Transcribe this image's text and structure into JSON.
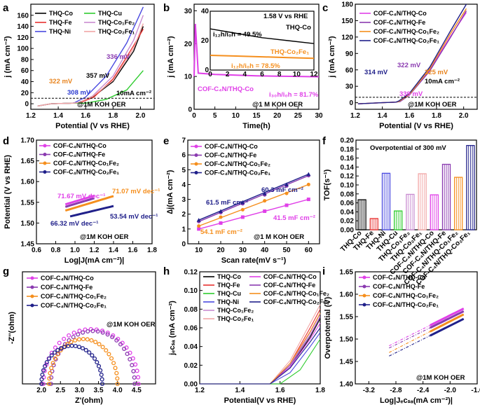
{
  "colors": {
    "THQ-Co": "#000000",
    "THQ-Fe": "#e8312f",
    "THQ-Ni": "#4a4ae0",
    "THQ-Cu": "#2ecc2e",
    "THQ-Co1Fe2": "#c98cd1",
    "THQ-Co2Fe1": "#f2a6a6",
    "COF-Co": "#e040e8",
    "COF-Fe": "#8a3ab0",
    "COF-Co1Fe2": "#f58f1e",
    "COF-Co2Fe1": "#20208a"
  },
  "chart_data": [
    {
      "panel": "a",
      "type": "line",
      "xlabel": "Potential (V vs RHE)",
      "ylabel": "j (mA cm⁻²)",
      "xlim": [
        1.2,
        2.1
      ],
      "ylim": [
        -10,
        180
      ],
      "xticks": [
        "1.2",
        "1.4",
        "1.6",
        "1.8",
        "2.0"
      ],
      "yticks": [
        "0",
        "20",
        "40",
        "60",
        "80",
        "100",
        "120",
        "140",
        "160"
      ],
      "legend": [
        "THQ-Co",
        "THQ-Fe",
        "THQ-Ni",
        "THQ-Cu",
        "THQ-Co₁Fe₂",
        "THQ-Co₂Fe₁"
      ],
      "annotations": [
        "308 mV",
        "322 mV",
        "357 mV",
        "336 mV",
        "10mA cm⁻²",
        "@1M KOH OER"
      ],
      "series": [
        {
          "name": "THQ-Co",
          "x": [
            1.55,
            1.65,
            1.8,
            1.95,
            2.02
          ],
          "y": [
            2,
            12,
            40,
            95,
            140
          ]
        },
        {
          "name": "THQ-Fe",
          "x": [
            1.56,
            1.66,
            1.8,
            1.95,
            2.02
          ],
          "y": [
            2,
            12,
            45,
            105,
            135
          ]
        },
        {
          "name": "THQ-Ni",
          "x": [
            1.52,
            1.6,
            1.75,
            1.9,
            2.02
          ],
          "y": [
            2,
            12,
            50,
            110,
            175
          ]
        },
        {
          "name": "THQ-Cu",
          "x": [
            1.6,
            1.75,
            1.9,
            2.02
          ],
          "y": [
            1,
            8,
            25,
            60
          ]
        },
        {
          "name": "THQ-Co₁Fe₂",
          "x": [
            1.55,
            1.65,
            1.8,
            1.95,
            2.02
          ],
          "y": [
            2,
            14,
            50,
            115,
            160
          ]
        },
        {
          "name": "THQ-Co₂Fe₁",
          "x": [
            1.55,
            1.65,
            1.8,
            1.95,
            2.02
          ],
          "y": [
            2,
            13,
            42,
            100,
            145
          ]
        }
      ]
    },
    {
      "panel": "b",
      "type": "line",
      "xlabel": "Time(h)",
      "ylabel": "j (mA cm⁻²)",
      "xlim": [
        0,
        30
      ],
      "ylim": [
        0,
        32
      ],
      "xticks": [
        "0",
        "5",
        "10",
        "15",
        "20",
        "25",
        "30"
      ],
      "yticks": [
        "0",
        "10",
        "20",
        "30"
      ],
      "series": [
        {
          "name": "COF-C₄N/THQ-Co",
          "x": [
            0,
            0.3,
            1,
            5,
            10,
            15,
            20,
            25,
            30
          ],
          "y": [
            10,
            26,
            11,
            10.6,
            10.4,
            10.2,
            10.1,
            10,
            9.9
          ]
        }
      ],
      "annotations": [
        "COF-C₄N/THQ-Co",
        "i₃₀h/i₀h = 81.7%",
        "@1 M KOH OER"
      ],
      "inset": {
        "xlim": [
          0,
          12
        ],
        "ylim": [
          0,
          40
        ],
        "xticks": [
          "0",
          "2",
          "4",
          "6",
          "8",
          "10",
          "12"
        ],
        "yticks": [
          "0",
          "20",
          "40"
        ],
        "labels": [
          "1.58 V vs RHE",
          "THQ-Co",
          "i₁₂h/i₀h = 49.5%",
          "THQ-Co₂Fe₁",
          "i₁₂h/i₀h = 78.5%"
        ],
        "series": [
          {
            "name": "THQ-Co",
            "x": [
              0,
              3,
              6,
              9,
              12
            ],
            "y": [
              28,
              25,
              22,
              20,
              18
            ]
          },
          {
            "name": "THQ-Co₂Fe₁",
            "x": [
              0,
              3,
              6,
              9,
              12
            ],
            "y": [
              10,
              9.5,
              9,
              8.5,
              8
            ]
          }
        ]
      }
    },
    {
      "panel": "c",
      "type": "line",
      "xlabel": "Potential (V vs RHE)",
      "ylabel": "j (mA cm⁻²)",
      "xlim": [
        1.2,
        2.1
      ],
      "ylim": [
        -12,
        180
      ],
      "xticks": [
        "1.2",
        "1.4",
        "1.6",
        "1.8",
        "2.0"
      ],
      "yticks": [
        "0",
        "30",
        "60",
        "90",
        "120",
        "150",
        "180"
      ],
      "legend": [
        "COF-C₄N/THQ-Co",
        "COF-C₄N/THQ-Fe",
        "COF-C₄N/THQ-Co₁Fe₂",
        "COF-C₄N/THQ-Co₂Fe₁"
      ],
      "annotations": [
        "314 mV",
        "322 mV",
        "325 mV",
        "339 mV",
        "10mA cm⁻²",
        "@1M KOH OER"
      ],
      "series": [
        {
          "name": "COF-C₄N/THQ-Co",
          "x": [
            1.52,
            1.6,
            1.75,
            1.9,
            2.02
          ],
          "y": [
            2,
            15,
            60,
            120,
            165
          ]
        },
        {
          "name": "COF-C₄N/THQ-Fe",
          "x": [
            1.53,
            1.6,
            1.75,
            1.9,
            2.02
          ],
          "y": [
            2,
            14,
            58,
            118,
            168
          ]
        },
        {
          "name": "COF-C₄N/THQ-Co₁Fe₂",
          "x": [
            1.52,
            1.6,
            1.75,
            1.9,
            2.02
          ],
          "y": [
            2,
            15,
            62,
            125,
            172
          ]
        },
        {
          "name": "COF-C₄N/THQ-Co₂Fe₁",
          "x": [
            1.52,
            1.6,
            1.75,
            1.9,
            2.02
          ],
          "y": [
            3,
            17,
            65,
            130,
            180
          ]
        }
      ]
    },
    {
      "panel": "d",
      "type": "line",
      "xlabel": "Log|J(mA cm⁻²)|",
      "ylabel": "Potential (V vs RHE)",
      "xlim": [
        0.6,
        1.8
      ],
      "ylim": [
        1.45,
        1.7
      ],
      "xticks": [
        "0.6",
        "0.8",
        "1.0",
        "1.2",
        "1.4",
        "1.6",
        "1.8"
      ],
      "yticks": [
        "1.45",
        "1.50",
        "1.55",
        "1.60",
        "1.65",
        "1.70"
      ],
      "legend": [
        "COF-C₄N/THQ-Co",
        "COF-C₄N/THQ-Fe",
        "COF-C₄N/THQ-Co₁Fe₂",
        "COF-C₄N/THQ-Co₂Fe₁"
      ],
      "annotations": [
        "71.67 mV dec⁻¹",
        "71.07 mV dec⁻¹",
        "66.32 mV dec⁻¹",
        "53.54 mV dec⁻¹",
        "@1M KOH OER"
      ],
      "series": [
        {
          "name": "COF-C₄N/THQ-Co",
          "x": [
            0.9,
            1.2
          ],
          "y": [
            1.545,
            1.566
          ]
        },
        {
          "name": "COF-C₄N/THQ-Fe",
          "x": [
            0.9,
            1.2
          ],
          "y": [
            1.539,
            1.56
          ]
        },
        {
          "name": "COF-C₄N/THQ-Co₁Fe₂",
          "x": [
            0.9,
            1.4
          ],
          "y": [
            1.53,
            1.565
          ]
        },
        {
          "name": "COF-C₄N/THQ-Co₂Fe₁",
          "x": [
            0.95,
            1.4
          ],
          "y": [
            1.516,
            1.541
          ]
        }
      ]
    },
    {
      "panel": "e",
      "type": "scatter",
      "xlabel": "Scan rate(mV s⁻¹)",
      "ylabel": "∆j(mA cm⁻²)",
      "xlim": [
        5,
        65
      ],
      "ylim": [
        0,
        7
      ],
      "xticks": [
        "10",
        "20",
        "30",
        "40",
        "50",
        "60"
      ],
      "yticks": [
        "0",
        "1",
        "2",
        "3",
        "4",
        "5",
        "6",
        "7"
      ],
      "legend": [
        "COF-C₄N/THQ-Co",
        "COF-C₄N/THQ-Fe",
        "COF-C₄N/THQ-Co₁Fe₂",
        "COF-C₄N/THQ-Co₂Fe₁"
      ],
      "annotations": [
        "60.3 mF cm⁻²",
        "61.5 mF cm⁻²",
        "54.1 mF cm⁻²",
        "41.5 mF cm⁻²",
        "@1 M KOH OER"
      ],
      "x": [
        10,
        20,
        30,
        40,
        50,
        60
      ],
      "series": [
        {
          "name": "COF-C₄N/THQ-Co",
          "values": [
            1.0,
            1.4,
            1.8,
            2.2,
            2.6,
            3.0
          ]
        },
        {
          "name": "COF-C₄N/THQ-Fe",
          "values": [
            1.5,
            2.1,
            2.7,
            3.3,
            3.9,
            4.6
          ]
        },
        {
          "name": "COF-C₄N/THQ-Co₁Fe₂",
          "values": [
            1.2,
            1.8,
            2.3,
            2.9,
            3.4,
            4.0
          ]
        },
        {
          "name": "COF-C₄N/THQ-Co₂Fe₁",
          "values": [
            1.6,
            2.2,
            2.8,
            3.4,
            4.0,
            4.7
          ]
        }
      ]
    },
    {
      "panel": "f",
      "type": "bar",
      "title": "Overpotential of 300 mV",
      "ylabel": "TOF(s⁻¹)",
      "ylim": [
        0,
        0.2
      ],
      "yticks": [
        "0.00",
        "0.02",
        "0.04",
        "0.06",
        "0.08",
        "0.10",
        "0.12",
        "0.14",
        "0.16",
        "0.18",
        "0.20"
      ],
      "categories": [
        "THQ-Co",
        "THQ-Fe",
        "THQ-Ni",
        "THQ-Cu",
        "THQ-Co₁Fe₂",
        "THQ-Co₂Fe₁",
        "COF-C₄N/THQ-Co",
        "COF-C₄N/THQ-Fe",
        "COF-C₄N/THQ-Co₁Fe₂",
        "COF-C₄N/THQ-Co₂Fe₁"
      ],
      "values": [
        0.067,
        0.025,
        0.126,
        0.042,
        0.079,
        0.125,
        0.078,
        0.146,
        0.117,
        0.188
      ]
    },
    {
      "panel": "g",
      "type": "scatter",
      "xlabel": "Z'(ohm)",
      "ylabel": "-Z''(ohm)",
      "xlim": [
        1.5,
        5.0
      ],
      "ylim": [
        0,
        2.5
      ],
      "xticks": [
        "2.0",
        "2.5",
        "3.0",
        "3.5",
        "4.0",
        "4.5"
      ],
      "yticks": [],
      "legend": [
        "COF-C₄N/THQ-Co",
        "COF-C₄N/THQ-Fe",
        "COF-C₄N/THQ-Co₁Fe₂",
        "COF-C₄N/THQ-Co₂Fe₁"
      ],
      "annotations": [
        "@1M KOH OER"
      ],
      "series": [
        {
          "name": "COF-C₄N/THQ-Co",
          "start": 2.05,
          "end": 4.55,
          "height": 1.22
        },
        {
          "name": "COF-C₄N/THQ-Fe",
          "start": 2.25,
          "end": 4.45,
          "height": 1.18
        },
        {
          "name": "COF-C₄N/THQ-Co₁Fe₂",
          "start": 2.2,
          "end": 4.0,
          "height": 1.0
        },
        {
          "name": "COF-C₄N/THQ-Co₂Fe₁",
          "start": 2.0,
          "end": 3.6,
          "height": 0.85
        }
      ]
    },
    {
      "panel": "h",
      "type": "line",
      "xlabel": "Potential(V vs RHE)",
      "ylabel": "jₑᴄₛₐ (mA cm⁻²)",
      "xlim": [
        1.2,
        1.8
      ],
      "ylim": [
        0,
        0.12
      ],
      "xticks": [
        "1.2",
        "1.4",
        "1.6",
        "1.8"
      ],
      "yticks": [
        "0.00",
        "0.02",
        "0.04",
        "0.06",
        "0.08",
        "0.10",
        "0.12"
      ],
      "legend": [
        "THQ-Co",
        "THQ-Fe",
        "THQ-Cu",
        "THQ-Ni",
        "THQ-Co₁Fe₂",
        "THQ-Co₂Fe₁",
        "COF-C₄N/THQ-Co",
        "COF-C₄N/THQ-Fe",
        "COF-C₄N/THQ-Co₁Fe₂",
        "COF-C₄N/THQ-Co₂Fe₁"
      ],
      "series": [
        {
          "name": "THQ-Co",
          "x": [
            1.55,
            1.65,
            1.75,
            1.8
          ],
          "y": [
            0,
            0.018,
            0.05,
            0.07
          ]
        },
        {
          "name": "THQ-Fe",
          "x": [
            1.55,
            1.65,
            1.75,
            1.8
          ],
          "y": [
            0,
            0.022,
            0.06,
            0.08
          ]
        },
        {
          "name": "THQ-Cu",
          "x": [
            1.6,
            1.7,
            1.8
          ],
          "y": [
            0,
            0.015,
            0.048
          ]
        },
        {
          "name": "THQ-Ni",
          "x": [
            1.55,
            1.65,
            1.75,
            1.8
          ],
          "y": [
            0,
            0.012,
            0.04,
            0.055
          ]
        },
        {
          "name": "THQ-Co₁Fe₂",
          "x": [
            1.55,
            1.65,
            1.75,
            1.8
          ],
          "y": [
            0,
            0.02,
            0.055,
            0.075
          ]
        },
        {
          "name": "THQ-Co₂Fe₁",
          "x": [
            1.55,
            1.65,
            1.75,
            1.8
          ],
          "y": [
            0,
            0.025,
            0.065,
            0.085
          ]
        },
        {
          "name": "COF-C₄N/THQ-Co",
          "x": [
            1.55,
            1.65,
            1.75,
            1.8
          ],
          "y": [
            0,
            0.018,
            0.048,
            0.065
          ]
        },
        {
          "name": "COF-C₄N/THQ-Fe",
          "x": [
            1.55,
            1.65,
            1.75,
            1.8
          ],
          "y": [
            0,
            0.02,
            0.052,
            0.072
          ]
        },
        {
          "name": "COF-C₄N/THQ-Co₁Fe₂",
          "x": [
            1.55,
            1.65,
            1.75,
            1.8
          ],
          "y": [
            0,
            0.022,
            0.056,
            0.076
          ]
        },
        {
          "name": "COF-C₄N/THQ-Co₂Fe₁",
          "x": [
            1.55,
            1.65,
            1.75,
            1.8
          ],
          "y": [
            0,
            0.017,
            0.045,
            0.06
          ]
        }
      ]
    },
    {
      "panel": "i",
      "type": "line",
      "xlabel": "Log|Jₑᴄₛₐ(mA cm⁻²)|",
      "ylabel": "Overpotential (V)",
      "xlim": [
        -3.4,
        -1.6
      ],
      "ylim": [
        1.4,
        1.65
      ],
      "xticks": [
        "-3.2",
        "-2.8",
        "-2.4",
        "-2.0",
        "-1.6"
      ],
      "yticks": [
        "1.40",
        "1.45",
        "1.50",
        "1.55",
        "1.60",
        "1.65"
      ],
      "legend": [
        "COF-C₄N/THQ-Co",
        "COF-C₄N/THQ-Fe",
        "COF-C₄N/THQ-Co₁Fe₂",
        "COF-C₄N/THQ-Co₂Fe₁"
      ],
      "annotations": [
        "@1M KOH OER"
      ],
      "series": [
        {
          "name": "COF-C₄N/THQ-Co",
          "x": [
            -2.9,
            -1.8
          ],
          "y": [
            1.485,
            1.568
          ]
        },
        {
          "name": "COF-C₄N/THQ-Fe",
          "x": [
            -2.9,
            -1.8
          ],
          "y": [
            1.48,
            1.562
          ]
        },
        {
          "name": "COF-C₄N/THQ-Co₁Fe₂",
          "x": [
            -2.9,
            -1.8
          ],
          "y": [
            1.47,
            1.555
          ]
        },
        {
          "name": "COF-C₄N/THQ-Co₂Fe₁",
          "x": [
            -2.9,
            -1.8
          ],
          "y": [
            1.462,
            1.545
          ]
        }
      ]
    }
  ],
  "panels": {
    "a": {
      "label": "a"
    },
    "b": {
      "label": "b"
    },
    "c": {
      "label": "c"
    },
    "d": {
      "label": "d"
    },
    "e": {
      "label": "e"
    },
    "f": {
      "label": "f"
    },
    "g": {
      "label": "g"
    },
    "h": {
      "label": "h"
    },
    "i": {
      "label": "i"
    }
  }
}
